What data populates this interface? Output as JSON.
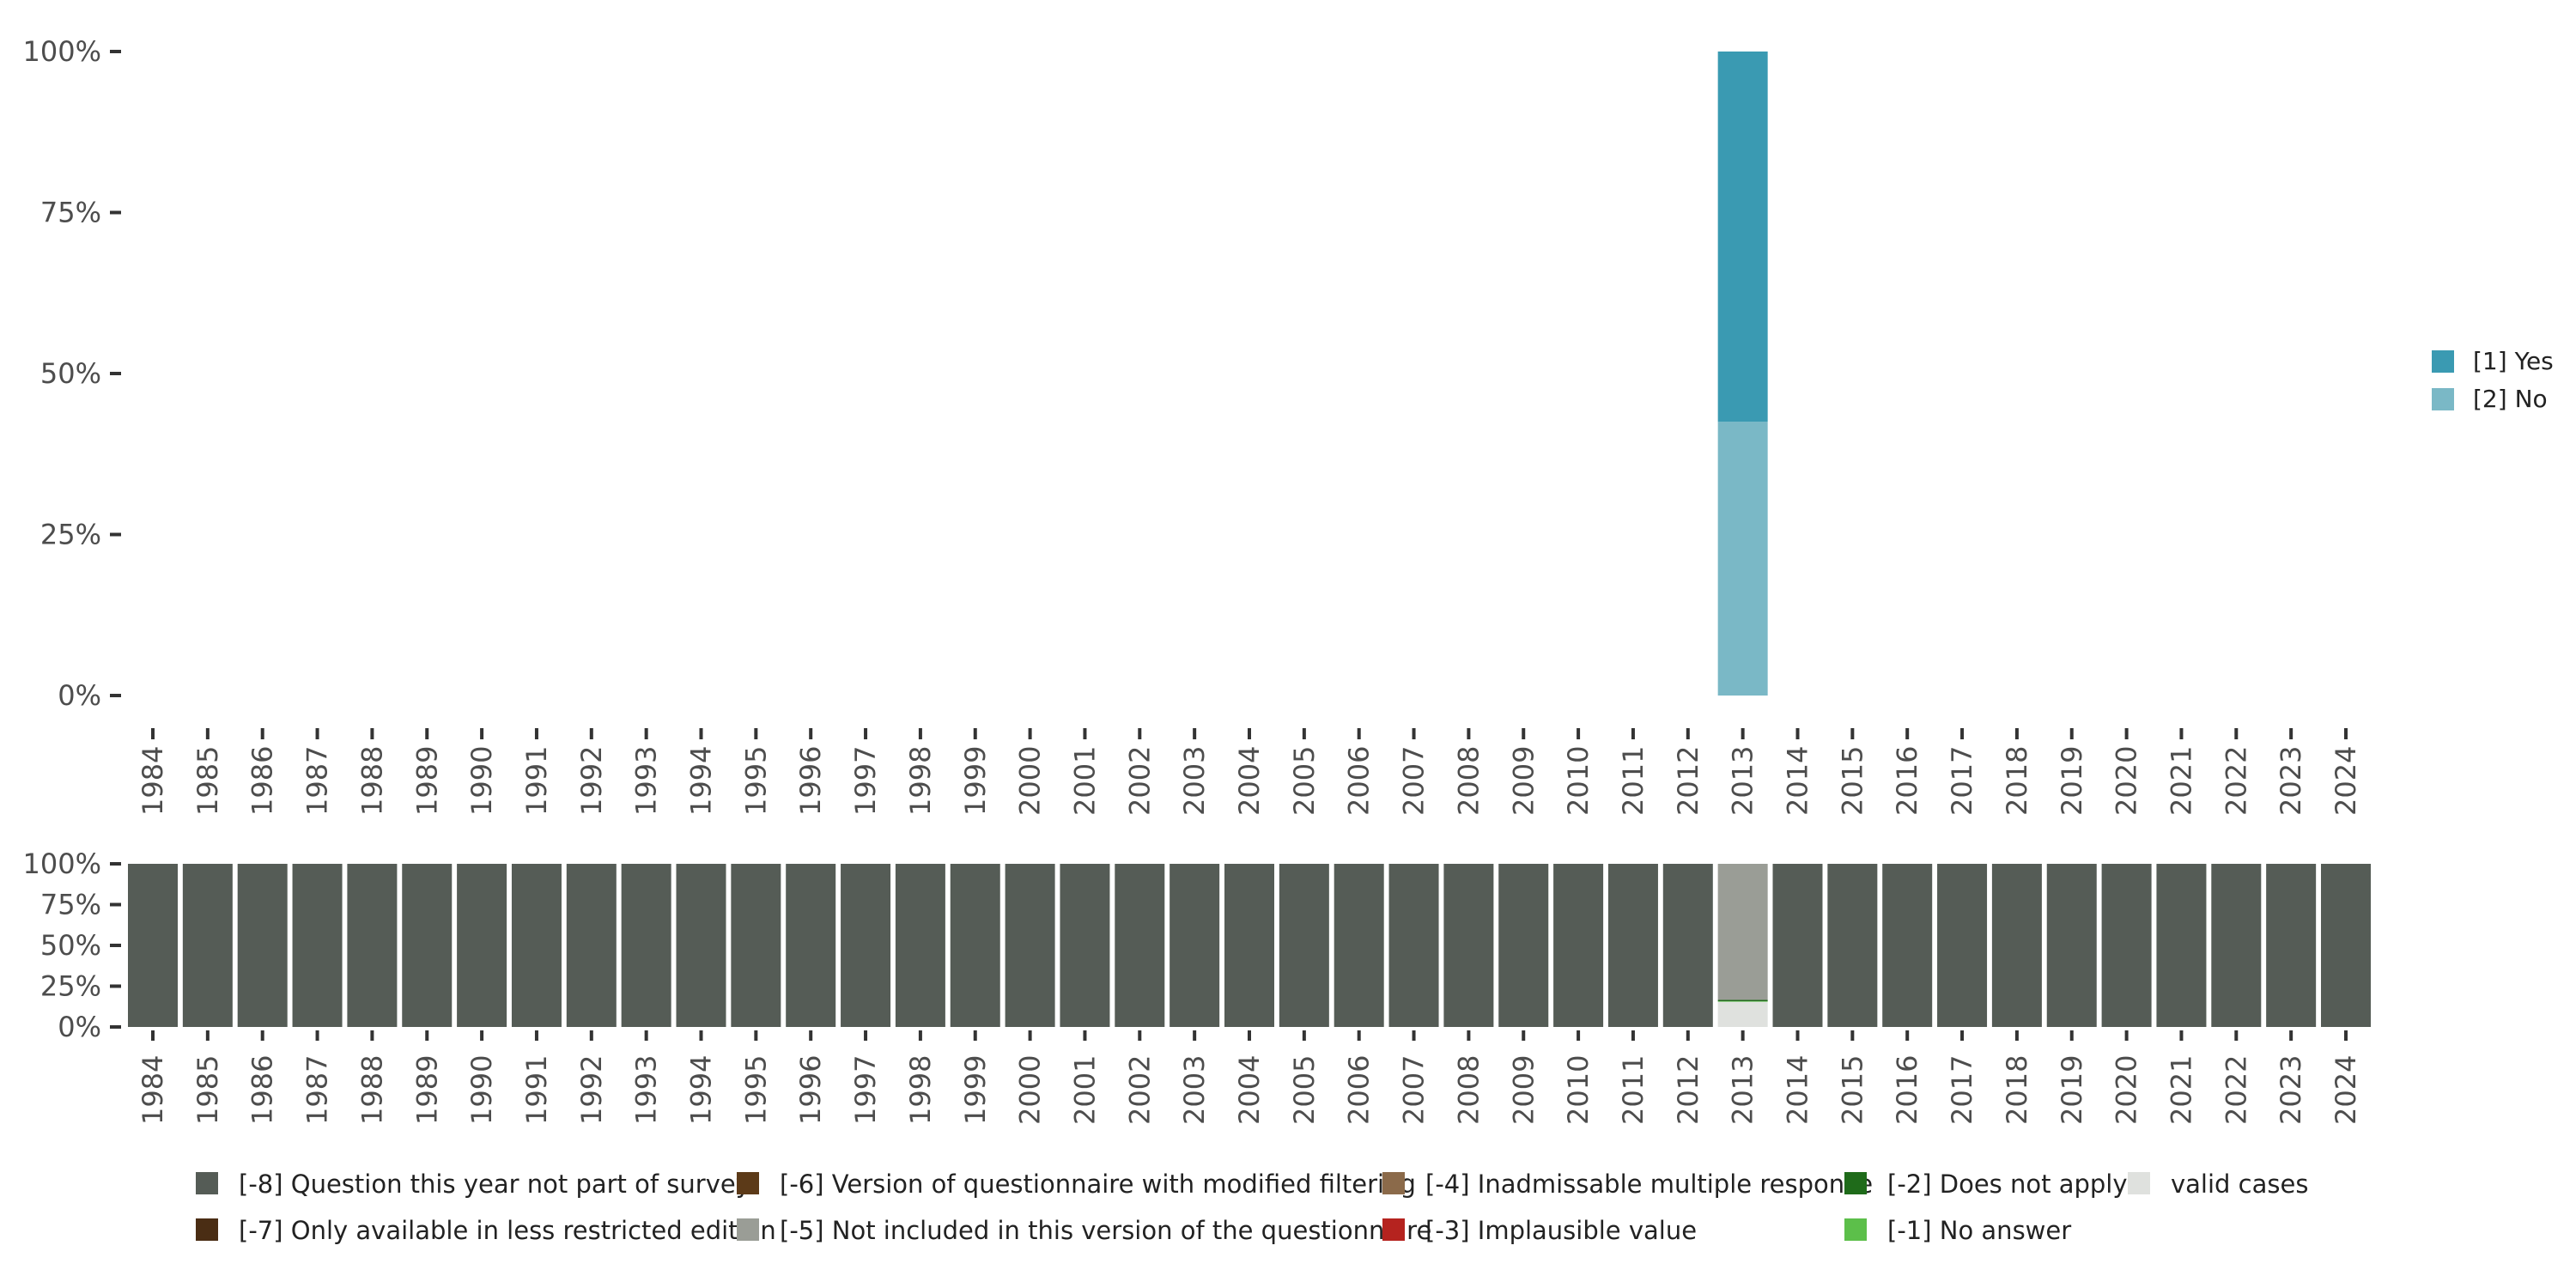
{
  "chart_data": [
    {
      "type": "bar",
      "stacked": true,
      "categories": [
        "1984",
        "1985",
        "1986",
        "1987",
        "1988",
        "1989",
        "1990",
        "1991",
        "1992",
        "1993",
        "1994",
        "1995",
        "1996",
        "1997",
        "1998",
        "1999",
        "2000",
        "2001",
        "2002",
        "2003",
        "2004",
        "2005",
        "2006",
        "2007",
        "2008",
        "2009",
        "2010",
        "2011",
        "2012",
        "2013",
        "2014",
        "2015",
        "2016",
        "2017",
        "2018",
        "2019",
        "2020",
        "2021",
        "2022",
        "2023",
        "2024"
      ],
      "ylim": [
        0,
        100
      ],
      "yticks": [
        "0%",
        "25%",
        "50%",
        "75%",
        "100%"
      ],
      "legend_position": "right",
      "series": [
        {
          "name": "[2] No",
          "color": "#7ab8c6",
          "values": {
            "2013": 42.5
          }
        },
        {
          "name": "[1] Yes",
          "color": "#3a9ab2",
          "values": {
            "2013": 57.5
          }
        }
      ]
    },
    {
      "type": "bar",
      "stacked": true,
      "categories": [
        "1984",
        "1985",
        "1986",
        "1987",
        "1988",
        "1989",
        "1990",
        "1991",
        "1992",
        "1993",
        "1994",
        "1995",
        "1996",
        "1997",
        "1998",
        "1999",
        "2000",
        "2001",
        "2002",
        "2003",
        "2004",
        "2005",
        "2006",
        "2007",
        "2008",
        "2009",
        "2010",
        "2011",
        "2012",
        "2013",
        "2014",
        "2015",
        "2016",
        "2017",
        "2018",
        "2019",
        "2020",
        "2021",
        "2022",
        "2023",
        "2024"
      ],
      "ylim": [
        0,
        100
      ],
      "yticks": [
        "0%",
        "25%",
        "50%",
        "75%",
        "100%"
      ],
      "legend_position": "bottom",
      "legend": [
        {
          "name": "[-8] Question this year not part of survey",
          "color": "#555c56"
        },
        {
          "name": "[-7] Only available in less restricted edition",
          "color": "#4a2d14"
        },
        {
          "name": "[-6] Version of questionnaire with modified filtering",
          "color": "#5c3a18"
        },
        {
          "name": "[-5] Not included in this version of the questionnaire",
          "color": "#9a9d96"
        },
        {
          "name": "[-4] Inadmissable multiple response",
          "color": "#8b6a4a"
        },
        {
          "name": "[-3] Implausible value",
          "color": "#b5231f"
        },
        {
          "name": "[-2] Does not apply",
          "color": "#1f6b1a"
        },
        {
          "name": "[-1] No answer",
          "color": "#5cbf4a"
        },
        {
          "name": "valid cases",
          "color": "#dfe1de"
        }
      ],
      "stack_order": [
        "valid cases",
        "[-1] No answer",
        "[-2] Does not apply",
        "[-5] Not included in this version of the questionnaire",
        "[-8] Question this year not part of survey"
      ],
      "values": {
        "default": {
          "[-8] Question this year not part of survey": 100
        },
        "2013": {
          "valid cases": 15.5,
          "[-1] No answer": 0.3,
          "[-2] Does not apply": 0.8,
          "[-5] Not included in this version of the questionnaire": 83.4
        }
      }
    }
  ]
}
